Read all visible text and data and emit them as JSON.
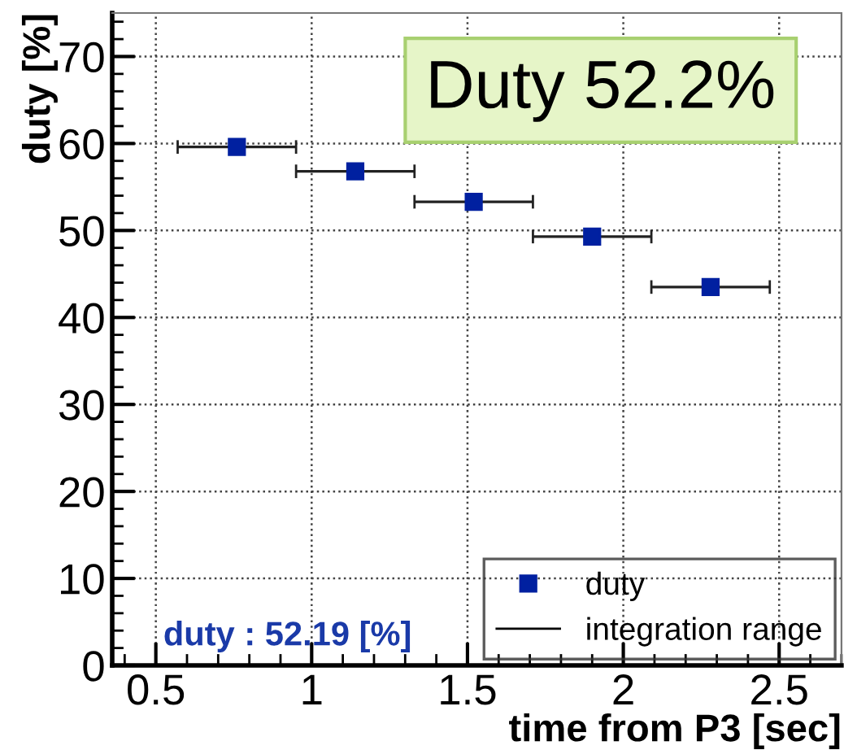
{
  "chart_data": {
    "type": "scatter",
    "xlabel": "time from P3 [sec]",
    "ylabel": "duty [%]",
    "x": [
      0.76,
      1.14,
      1.52,
      1.9,
      2.28
    ],
    "series": [
      {
        "name": "duty",
        "color": "#0020a0",
        "values": [
          59.6,
          56.8,
          53.3,
          49.3,
          43.5
        ],
        "xerrors": [
          0.19,
          0.19,
          0.19,
          0.19,
          0.19
        ]
      }
    ],
    "xlim": [
      0.36,
      2.7
    ],
    "ylim": [
      0,
      75
    ],
    "xticks": [
      0.5,
      1,
      1.5,
      2,
      2.5
    ],
    "yticks": [
      0,
      10,
      20,
      30,
      40,
      50,
      60,
      70
    ],
    "grid": true,
    "legend": "bottom right",
    "marker": "square",
    "annotations": [
      "Duty 52.2%",
      "duty : 52.19 [%]",
      "integration range"
    ]
  }
}
